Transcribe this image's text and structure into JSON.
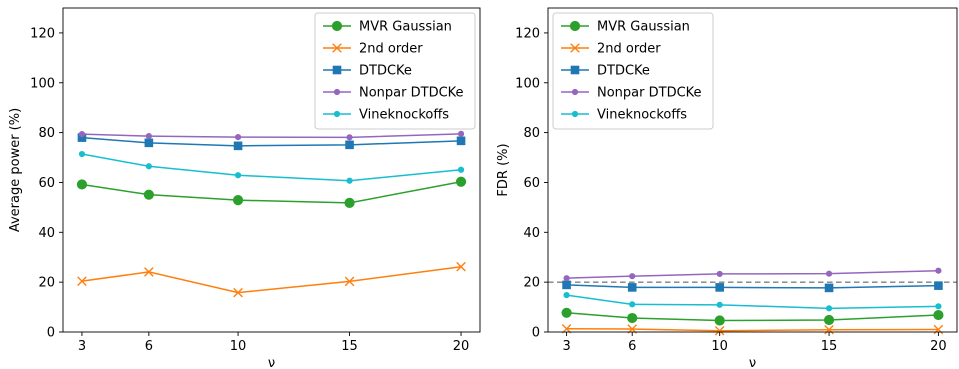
{
  "chart_data": [
    {
      "type": "line",
      "xlabel": "ν",
      "ylabel": "Average power (%)",
      "x": [
        3,
        6,
        10,
        15,
        20
      ],
      "xticks": [
        3,
        6,
        10,
        15,
        20
      ],
      "xlim": [
        2.15,
        20.85
      ],
      "ylim": [
        0,
        130
      ],
      "yticks": [
        0,
        20,
        40,
        60,
        80,
        100,
        120
      ],
      "grid": false,
      "legend_position": "top-right",
      "series": [
        {
          "name": "MVR Gaussian",
          "values": [
            59.2,
            55.1,
            52.9,
            51.8,
            60.3
          ],
          "color": "#2ca02c",
          "marker": "circle-large"
        },
        {
          "name": "2nd order",
          "values": [
            20.4,
            24.1,
            15.8,
            20.3,
            26.2
          ],
          "color": "#ff7f0e",
          "marker": "x"
        },
        {
          "name": "DTDCKe",
          "values": [
            78.0,
            75.9,
            74.7,
            75.1,
            76.7
          ],
          "color": "#1f77b4",
          "marker": "square"
        },
        {
          "name": "Nonpar DTDCKe",
          "values": [
            79.4,
            78.6,
            78.2,
            78.1,
            79.5
          ],
          "color": "#9467bd",
          "marker": "circle-small"
        },
        {
          "name": "Vineknockoffs",
          "values": [
            71.4,
            66.5,
            62.9,
            60.7,
            65.1
          ],
          "color": "#17becf",
          "marker": "circle-small"
        }
      ]
    },
    {
      "type": "line",
      "xlabel": "ν",
      "ylabel": "FDR (%)",
      "x": [
        3,
        6,
        10,
        15,
        20
      ],
      "xticks": [
        3,
        6,
        10,
        15,
        20
      ],
      "xlim": [
        2.15,
        20.85
      ],
      "ylim": [
        0,
        130
      ],
      "yticks": [
        0,
        20,
        40,
        60,
        80,
        100,
        120
      ],
      "grid": false,
      "legend_position": "top-left",
      "reference_line": {
        "y": 20,
        "color": "#808080",
        "style": "dashed"
      },
      "series": [
        {
          "name": "MVR Gaussian",
          "values": [
            7.7,
            5.6,
            4.6,
            4.8,
            6.8
          ],
          "color": "#2ca02c",
          "marker": "circle-large"
        },
        {
          "name": "2nd order",
          "values": [
            1.3,
            1.2,
            0.5,
            0.9,
            1.0
          ],
          "color": "#ff7f0e",
          "marker": "x"
        },
        {
          "name": "DTDCKe",
          "values": [
            18.9,
            17.9,
            17.9,
            17.7,
            18.6
          ],
          "color": "#1f77b4",
          "marker": "square"
        },
        {
          "name": "Nonpar DTDCKe",
          "values": [
            21.6,
            22.4,
            23.3,
            23.4,
            24.6
          ],
          "color": "#9467bd",
          "marker": "circle-small"
        },
        {
          "name": "Vineknockoffs",
          "values": [
            14.8,
            11.1,
            10.9,
            9.5,
            10.3
          ],
          "color": "#17becf",
          "marker": "circle-small"
        }
      ]
    }
  ]
}
